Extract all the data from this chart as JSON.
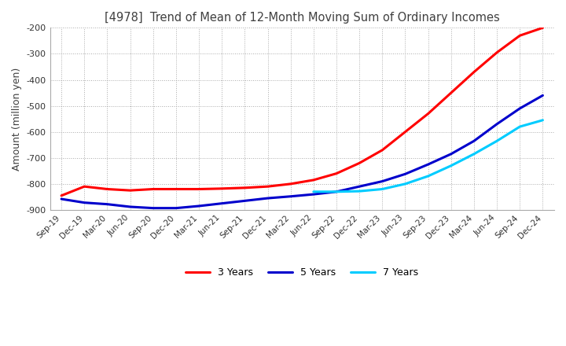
{
  "title": "[4978]  Trend of Mean of 12-Month Moving Sum of Ordinary Incomes",
  "ylabel": "Amount (million yen)",
  "title_color": "#404040",
  "background_color": "#ffffff",
  "grid_color": "#aaaaaa",
  "ylim": [
    -900,
    -200
  ],
  "yticks": [
    -900,
    -800,
    -700,
    -600,
    -500,
    -400,
    -300,
    -200
  ],
  "x_labels": [
    "Sep-19",
    "Dec-19",
    "Mar-20",
    "Jun-20",
    "Sep-20",
    "Dec-20",
    "Mar-21",
    "Jun-21",
    "Sep-21",
    "Dec-21",
    "Mar-22",
    "Jun-22",
    "Sep-22",
    "Dec-22",
    "Mar-23",
    "Jun-23",
    "Sep-23",
    "Dec-23",
    "Mar-24",
    "Jun-24",
    "Sep-24",
    "Dec-24"
  ],
  "series": {
    "3 Years": {
      "color": "#ff0000",
      "data": [
        -845,
        -810,
        -820,
        -825,
        -820,
        -820,
        -820,
        -818,
        -815,
        -810,
        -800,
        -785,
        -760,
        -720,
        -670,
        -600,
        -530,
        -450,
        -370,
        -295,
        -230,
        -200
      ]
    },
    "5 Years": {
      "color": "#0000cc",
      "data": [
        -858,
        -872,
        -878,
        -888,
        -893,
        -893,
        -885,
        -875,
        -865,
        -855,
        -848,
        -840,
        -830,
        -810,
        -790,
        -762,
        -725,
        -685,
        -635,
        -570,
        -510,
        -460
      ]
    },
    "7 Years": {
      "color": "#00ccff",
      "data": [
        null,
        null,
        null,
        null,
        null,
        null,
        null,
        null,
        null,
        null,
        null,
        -830,
        -830,
        -828,
        -820,
        -800,
        -770,
        -730,
        -685,
        -635,
        -580,
        -555
      ]
    },
    "10 Years": {
      "color": "#008000",
      "data": [
        null,
        null,
        null,
        null,
        null,
        null,
        null,
        null,
        null,
        null,
        null,
        null,
        null,
        null,
        null,
        null,
        null,
        null,
        null,
        null,
        null,
        null
      ]
    }
  },
  "legend_ncol": 4,
  "line_width": 2.2
}
